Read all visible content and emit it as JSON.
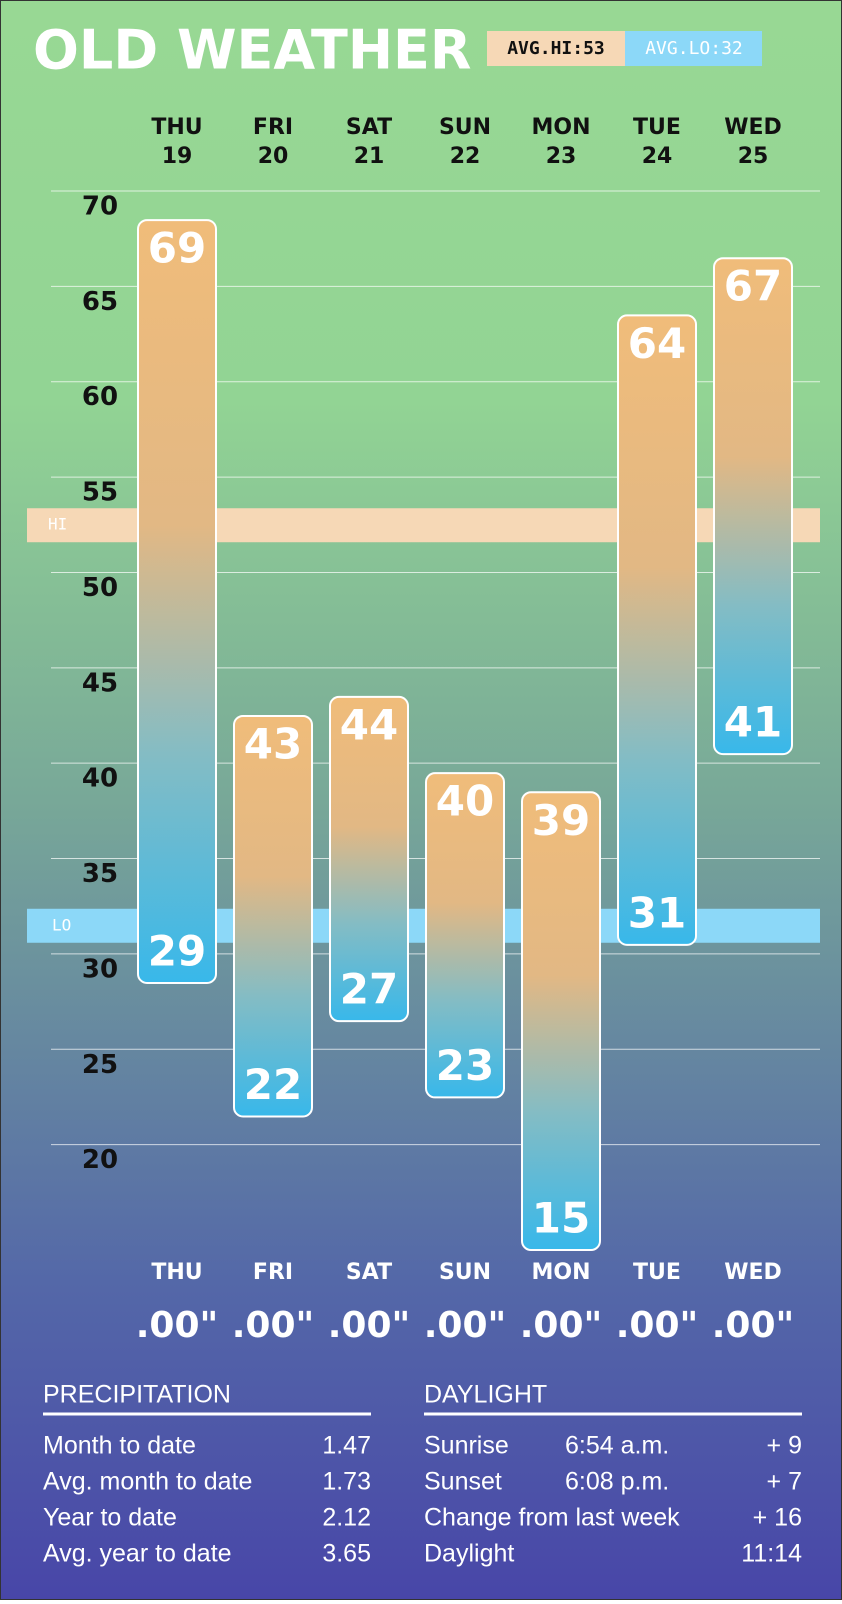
{
  "chart_data": {
    "type": "range_bar",
    "title": "OLD WEATHER",
    "categories": [
      "THU",
      "FRI",
      "SAT",
      "SUN",
      "MON",
      "TUE",
      "WED"
    ],
    "dates": [
      "19",
      "20",
      "21",
      "22",
      "23",
      "24",
      "25"
    ],
    "series": [
      {
        "name": "High",
        "color": "#f0bc7a",
        "values": [
          69,
          43,
          44,
          40,
          39,
          64,
          67
        ]
      },
      {
        "name": "Low",
        "color": "#38b8ea",
        "values": [
          29,
          22,
          27,
          23,
          15,
          31,
          41
        ]
      }
    ],
    "ylim": [
      15,
      70
    ],
    "yticks": [
      20,
      25,
      30,
      35,
      40,
      45,
      50,
      55,
      60,
      65,
      70
    ],
    "grid": true,
    "reference_lines": [
      {
        "label": "HI",
        "badge": "AVG.HI:53",
        "value": 53,
        "color": "#f6d8b6"
      },
      {
        "label": "LO",
        "badge": "AVG.LO:32",
        "value": 32,
        "color": "#8cd8f8"
      }
    ],
    "precipitation": [
      0,
      0,
      0,
      0,
      0,
      0,
      0
    ],
    "precipitation_labels": [
      ".00\"",
      ".00\"",
      ".00\"",
      ".00\"",
      ".00\"",
      ".00\"",
      ".00\""
    ]
  },
  "precipitation_table": {
    "title": "PRECIPITATION",
    "rows": [
      [
        "Month to date",
        1.47
      ],
      [
        "Avg. month to date",
        1.73
      ],
      [
        "Year to date",
        2.12
      ],
      [
        "Avg. year to date",
        3.65
      ]
    ]
  },
  "daylight_table": {
    "title": "DAYLIGHT",
    "rows": [
      [
        "Sunrise",
        "6:54 a.m.",
        "+ 9"
      ],
      [
        "Sunset",
        "6:08 p.m.",
        "+ 7"
      ],
      [
        "Change from last week",
        "",
        "+ 16"
      ],
      [
        "Daylight",
        "",
        "11:14"
      ]
    ]
  }
}
